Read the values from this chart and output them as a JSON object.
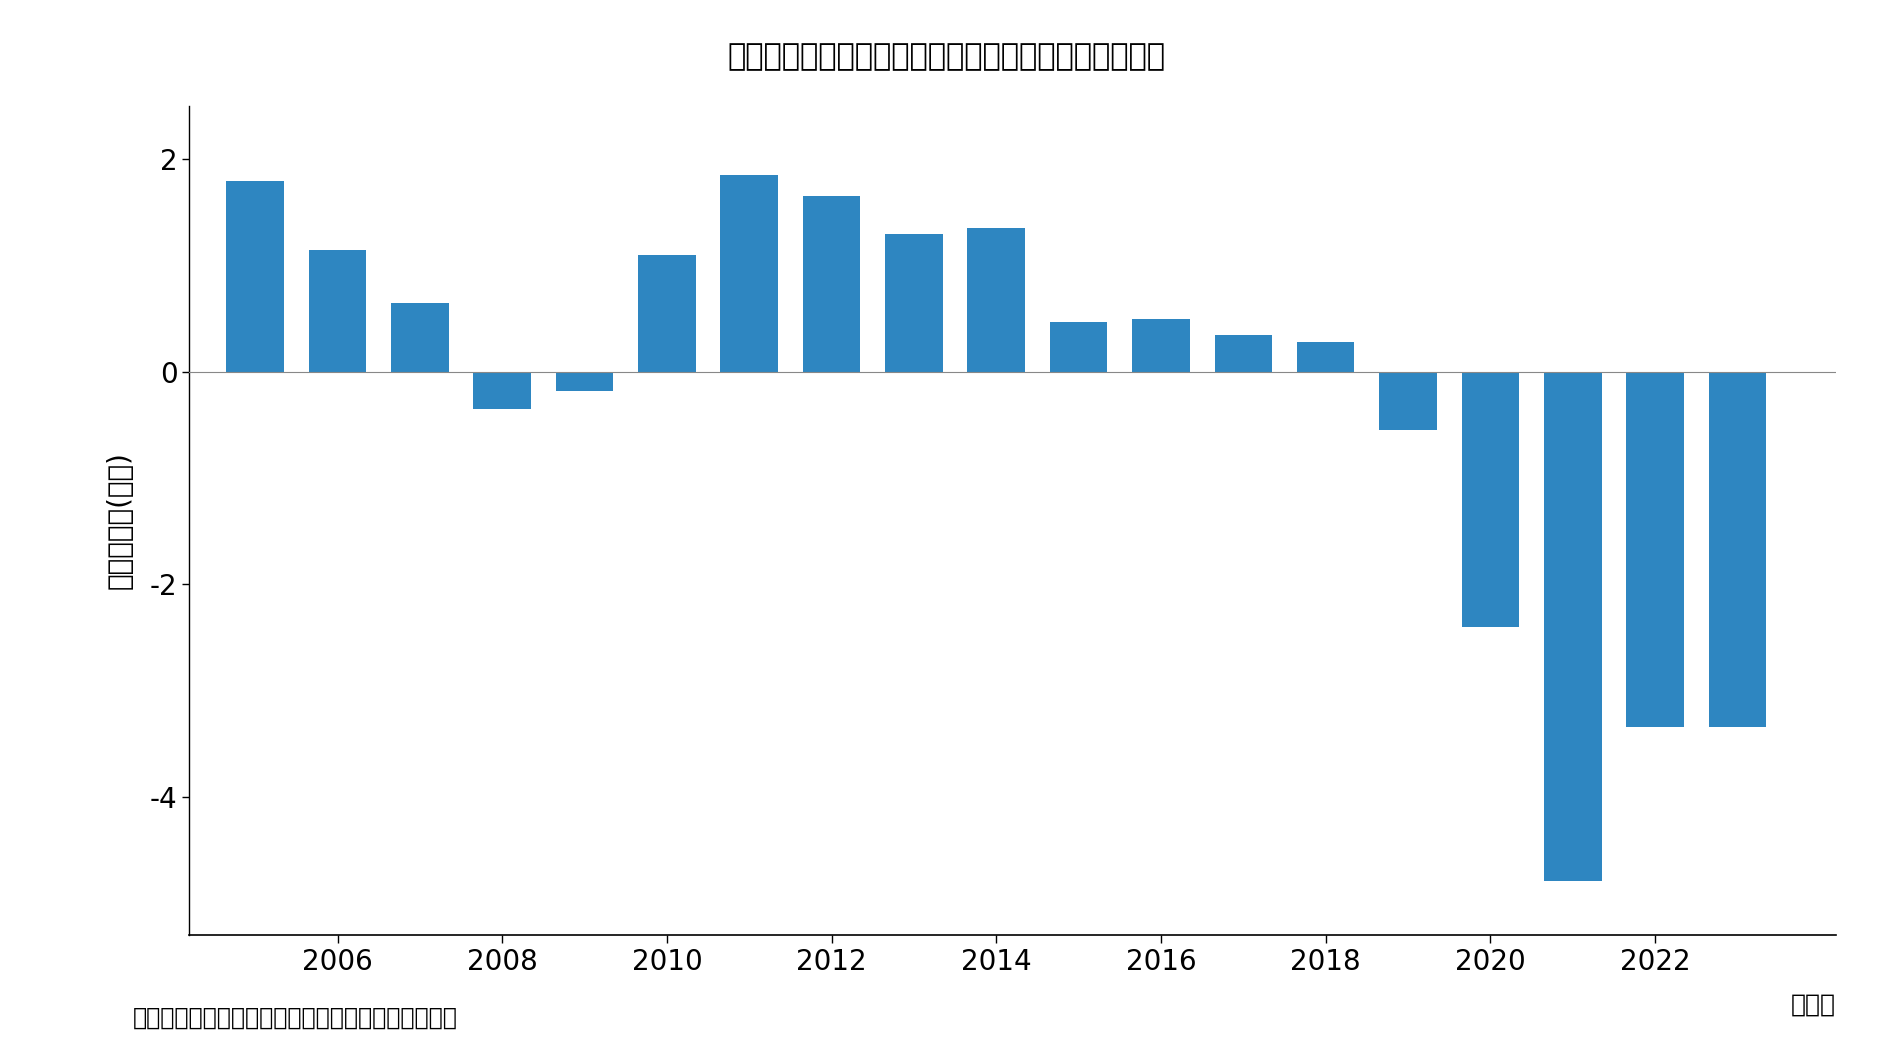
{
  "title": "図６　周辺部から東京２３区への転入超過数（年次）",
  "ylabel": "転入超過数(万人)",
  "xlabel_suffix": "（年）",
  "bar_color": "#2E86C1",
  "background_color": "#ffffff",
  "source_text": "出所：総務省統計局「住民基本台帳人口移動報告」",
  "years": [
    2005,
    2006,
    2007,
    2008,
    2009,
    2010,
    2011,
    2012,
    2013,
    2014,
    2015,
    2016,
    2017,
    2018,
    2019,
    2020,
    2021,
    2022,
    2023
  ],
  "values": [
    1.8,
    1.15,
    0.65,
    -0.35,
    -0.18,
    1.1,
    1.85,
    1.65,
    1.3,
    1.35,
    0.47,
    0.5,
    0.35,
    0.28,
    -0.55,
    -2.4,
    -4.8,
    -3.35,
    -3.35
  ],
  "ylim": [
    -5.3,
    2.5
  ],
  "yticks": [
    2,
    0,
    -2,
    -4
  ],
  "xticks": [
    2006,
    2008,
    2010,
    2012,
    2014,
    2016,
    2018,
    2020,
    2022
  ],
  "xlim_left": 2004.2,
  "xlim_right": 2024.2,
  "bar_width": 0.7
}
